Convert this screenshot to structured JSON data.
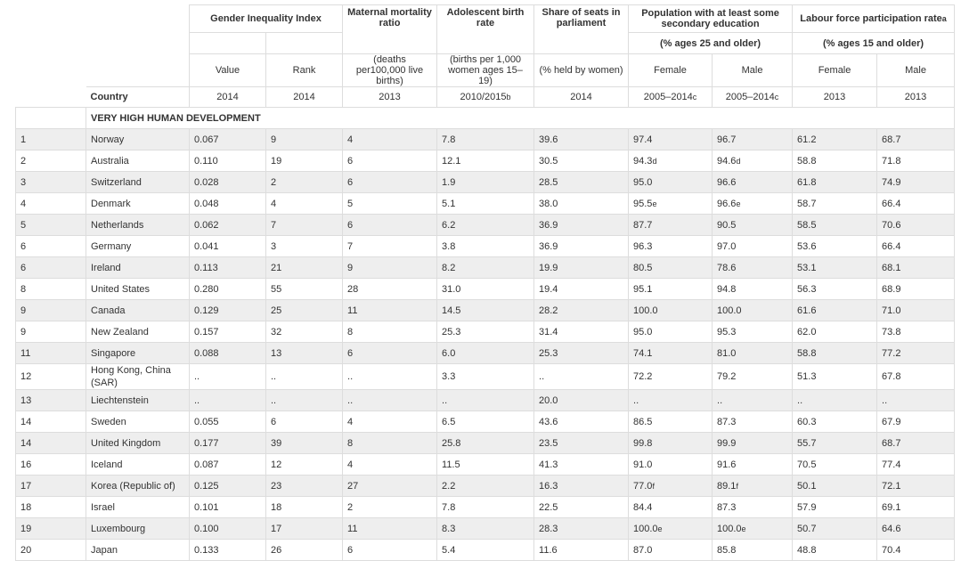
{
  "header": {
    "groups": [
      {
        "label": "Gender Inequality Index"
      },
      {
        "label": "Maternal mortality ratio"
      },
      {
        "label": "Adolescent birth rate"
      },
      {
        "label": "Share of seats in parliament"
      },
      {
        "label": "Population with at least some secondary education"
      },
      {
        "label": "Labour force participation rate",
        "fn": "a"
      }
    ],
    "age_notes": {
      "education": "(% ages 25 and older)",
      "labour": "(% ages 15 and older)"
    },
    "units": {
      "gii_value": "Value",
      "gii_rank": "Rank",
      "mmr": "(deaths per100,000 live births)",
      "abr": "(births per 1,000 women ages 15–19)",
      "seats": "(% held by women)",
      "edu_female": "Female",
      "edu_male": "Male",
      "lab_female": "Female",
      "lab_male": "Male"
    },
    "country_label": "Country",
    "years": {
      "gii_value": "2014",
      "gii_rank": "2014",
      "mmr": "2013",
      "abr": "2010/2015",
      "abr_fn": "b",
      "seats": "2014",
      "edu_female": "2005–2014",
      "edu_female_fn": "c",
      "edu_male": "2005–2014",
      "edu_male_fn": "c",
      "lab_female": "2013",
      "lab_male": "2013"
    }
  },
  "group_title": "VERY HIGH HUMAN DEVELOPMENT",
  "rows": [
    {
      "hdi_rank": "1",
      "country": "Norway",
      "gii_value": "0.067",
      "gii_rank": "9",
      "mmr": "4",
      "abr": "7.8",
      "seats": "39.6",
      "edu_f": "97.4",
      "edu_f_fn": "",
      "edu_m": "96.7",
      "edu_m_fn": "",
      "lab_f": "61.2",
      "lab_m": "68.7"
    },
    {
      "hdi_rank": "2",
      "country": "Australia",
      "gii_value": "0.110",
      "gii_rank": "19",
      "mmr": "6",
      "abr": "12.1",
      "seats": "30.5",
      "edu_f": "94.3",
      "edu_f_fn": "d",
      "edu_m": "94.6",
      "edu_m_fn": "d",
      "lab_f": "58.8",
      "lab_m": "71.8"
    },
    {
      "hdi_rank": "3",
      "country": "Switzerland",
      "gii_value": "0.028",
      "gii_rank": "2",
      "mmr": "6",
      "abr": "1.9",
      "seats": "28.5",
      "edu_f": "95.0",
      "edu_f_fn": "",
      "edu_m": "96.6",
      "edu_m_fn": "",
      "lab_f": "61.8",
      "lab_m": "74.9"
    },
    {
      "hdi_rank": "4",
      "country": "Denmark",
      "gii_value": "0.048",
      "gii_rank": "4",
      "mmr": "5",
      "abr": "5.1",
      "seats": "38.0",
      "edu_f": "95.5",
      "edu_f_fn": "e",
      "edu_m": "96.6",
      "edu_m_fn": "e",
      "lab_f": "58.7",
      "lab_m": "66.4"
    },
    {
      "hdi_rank": "5",
      "country": "Netherlands",
      "gii_value": "0.062",
      "gii_rank": "7",
      "mmr": "6",
      "abr": "6.2",
      "seats": "36.9",
      "edu_f": "87.7",
      "edu_f_fn": "",
      "edu_m": "90.5",
      "edu_m_fn": "",
      "lab_f": "58.5",
      "lab_m": "70.6"
    },
    {
      "hdi_rank": "6",
      "country": "Germany",
      "gii_value": "0.041",
      "gii_rank": "3",
      "mmr": "7",
      "abr": "3.8",
      "seats": "36.9",
      "edu_f": "96.3",
      "edu_f_fn": "",
      "edu_m": "97.0",
      "edu_m_fn": "",
      "lab_f": "53.6",
      "lab_m": "66.4"
    },
    {
      "hdi_rank": "6",
      "country": "Ireland",
      "gii_value": "0.113",
      "gii_rank": "21",
      "mmr": "9",
      "abr": "8.2",
      "seats": "19.9",
      "edu_f": "80.5",
      "edu_f_fn": "",
      "edu_m": "78.6",
      "edu_m_fn": "",
      "lab_f": "53.1",
      "lab_m": "68.1"
    },
    {
      "hdi_rank": "8",
      "country": "United States",
      "gii_value": "0.280",
      "gii_rank": "55",
      "mmr": "28",
      "abr": "31.0",
      "seats": "19.4",
      "edu_f": "95.1",
      "edu_f_fn": "",
      "edu_m": "94.8",
      "edu_m_fn": "",
      "lab_f": "56.3",
      "lab_m": "68.9"
    },
    {
      "hdi_rank": "9",
      "country": "Canada",
      "gii_value": "0.129",
      "gii_rank": "25",
      "mmr": "11",
      "abr": "14.5",
      "seats": "28.2",
      "edu_f": "100.0",
      "edu_f_fn": "",
      "edu_m": "100.0",
      "edu_m_fn": "",
      "lab_f": "61.6",
      "lab_m": "71.0"
    },
    {
      "hdi_rank": "9",
      "country": "New Zealand",
      "gii_value": "0.157",
      "gii_rank": "32",
      "mmr": "8",
      "abr": "25.3",
      "seats": "31.4",
      "edu_f": "95.0",
      "edu_f_fn": "",
      "edu_m": "95.3",
      "edu_m_fn": "",
      "lab_f": "62.0",
      "lab_m": "73.8"
    },
    {
      "hdi_rank": "11",
      "country": "Singapore",
      "gii_value": "0.088",
      "gii_rank": "13",
      "mmr": "6",
      "abr": "6.0",
      "seats": "25.3",
      "edu_f": "74.1",
      "edu_f_fn": "",
      "edu_m": "81.0",
      "edu_m_fn": "",
      "lab_f": "58.8",
      "lab_m": "77.2"
    },
    {
      "hdi_rank": "12",
      "country": "Hong Kong, China (SAR)",
      "gii_value": "..",
      "gii_rank": "..",
      "mmr": "..",
      "abr": "3.3",
      "seats": "..",
      "edu_f": "72.2",
      "edu_f_fn": "",
      "edu_m": "79.2",
      "edu_m_fn": "",
      "lab_f": "51.3",
      "lab_m": "67.8"
    },
    {
      "hdi_rank": "13",
      "country": "Liechtenstein",
      "gii_value": "..",
      "gii_rank": "..",
      "mmr": "..",
      "abr": "..",
      "seats": "20.0",
      "edu_f": "..",
      "edu_f_fn": "",
      "edu_m": "..",
      "edu_m_fn": "",
      "lab_f": "..",
      "lab_m": ".."
    },
    {
      "hdi_rank": "14",
      "country": "Sweden",
      "gii_value": "0.055",
      "gii_rank": "6",
      "mmr": "4",
      "abr": "6.5",
      "seats": "43.6",
      "edu_f": "86.5",
      "edu_f_fn": "",
      "edu_m": "87.3",
      "edu_m_fn": "",
      "lab_f": "60.3",
      "lab_m": "67.9"
    },
    {
      "hdi_rank": "14",
      "country": "United Kingdom",
      "gii_value": "0.177",
      "gii_rank": "39",
      "mmr": "8",
      "abr": "25.8",
      "seats": "23.5",
      "edu_f": "99.8",
      "edu_f_fn": "",
      "edu_m": "99.9",
      "edu_m_fn": "",
      "lab_f": "55.7",
      "lab_m": "68.7"
    },
    {
      "hdi_rank": "16",
      "country": "Iceland",
      "gii_value": "0.087",
      "gii_rank": "12",
      "mmr": "4",
      "abr": "11.5",
      "seats": "41.3",
      "edu_f": "91.0",
      "edu_f_fn": "",
      "edu_m": "91.6",
      "edu_m_fn": "",
      "lab_f": "70.5",
      "lab_m": "77.4"
    },
    {
      "hdi_rank": "17",
      "country": "Korea (Republic of)",
      "gii_value": "0.125",
      "gii_rank": "23",
      "mmr": "27",
      "abr": "2.2",
      "seats": "16.3",
      "edu_f": "77.0",
      "edu_f_fn": "f",
      "edu_m": "89.1",
      "edu_m_fn": "f",
      "lab_f": "50.1",
      "lab_m": "72.1"
    },
    {
      "hdi_rank": "18",
      "country": "Israel",
      "gii_value": "0.101",
      "gii_rank": "18",
      "mmr": "2",
      "abr": "7.8",
      "seats": "22.5",
      "edu_f": "84.4",
      "edu_f_fn": "",
      "edu_m": "87.3",
      "edu_m_fn": "",
      "lab_f": "57.9",
      "lab_m": "69.1"
    },
    {
      "hdi_rank": "19",
      "country": "Luxembourg",
      "gii_value": "0.100",
      "gii_rank": "17",
      "mmr": "11",
      "abr": "8.3",
      "seats": "28.3",
      "edu_f": "100.0",
      "edu_f_fn": "e",
      "edu_m": "100.0",
      "edu_m_fn": "e",
      "lab_f": "50.7",
      "lab_m": "64.6"
    },
    {
      "hdi_rank": "20",
      "country": "Japan",
      "gii_value": "0.133",
      "gii_rank": "26",
      "mmr": "6",
      "abr": "5.4",
      "seats": "11.6",
      "edu_f": "87.0",
      "edu_f_fn": "",
      "edu_m": "85.8",
      "edu_m_fn": "",
      "lab_f": "48.8",
      "lab_m": "70.4"
    }
  ]
}
